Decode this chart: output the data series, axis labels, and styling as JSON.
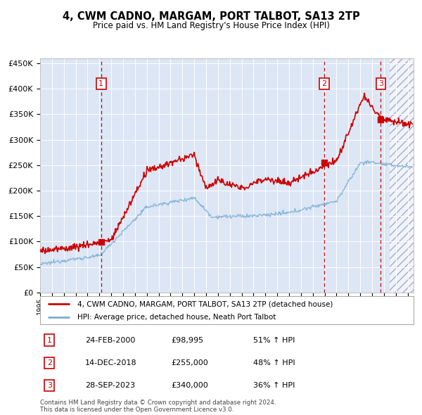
{
  "title": "4, CWM CADNO, MARGAM, PORT TALBOT, SA13 2TP",
  "subtitle": "Price paid vs. HM Land Registry's House Price Index (HPI)",
  "ylim": [
    0,
    460000
  ],
  "yticks": [
    0,
    50000,
    100000,
    150000,
    200000,
    250000,
    300000,
    350000,
    400000,
    450000
  ],
  "xlim_start": 1995.0,
  "xlim_end": 2026.5,
  "sale_dates": [
    2000.15,
    2018.96,
    2023.74
  ],
  "sale_prices": [
    98995,
    255000,
    340000
  ],
  "sale_labels": [
    "1",
    "2",
    "3"
  ],
  "legend_line1": "4, CWM CADNO, MARGAM, PORT TALBOT, SA13 2TP (detached house)",
  "legend_line2": "HPI: Average price, detached house, Neath Port Talbot",
  "table_rows": [
    [
      "1",
      "24-FEB-2000",
      "£98,995",
      "51% ↑ HPI"
    ],
    [
      "2",
      "14-DEC-2018",
      "£255,000",
      "48% ↑ HPI"
    ],
    [
      "3",
      "28-SEP-2023",
      "£340,000",
      "36% ↑ HPI"
    ]
  ],
  "footnote": "Contains HM Land Registry data © Crown copyright and database right 2024.\nThis data is licensed under the Open Government Licence v3.0.",
  "price_color": "#cc0000",
  "hpi_color": "#7bafd4",
  "background_color": "#dce6f5",
  "hatch_color": "#aaaacc"
}
